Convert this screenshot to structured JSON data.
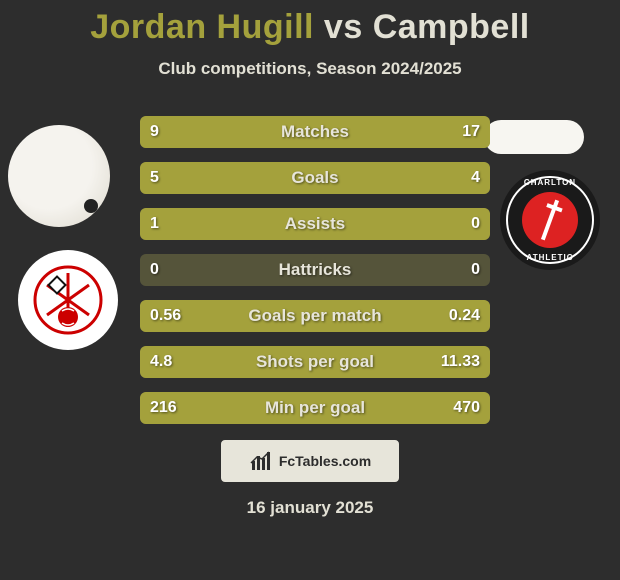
{
  "colors": {
    "bg": "#2d2d2d",
    "title_p1": "#a4a13c",
    "title_p2": "#e2e0d4",
    "subtitle": "#e2e0d4",
    "row_bg": "#55543a",
    "fill": "#a4a13c",
    "row_label": "#e7e5da",
    "row_value": "#ffffff",
    "logo_border": "#e7e5da",
    "logo_text": "#2d2d2d",
    "logo_bg": "#e7e5da",
    "date": "#e2e0d4"
  },
  "title": {
    "p1": "Jordan Hugill",
    "vs": "vs",
    "p2": "Campbell"
  },
  "subtitle": "Club competitions, Season 2024/2025",
  "badges": {
    "b2_top": "CHARLTON",
    "b2_bottom": "ATHLETIC"
  },
  "rows": [
    {
      "label": "Matches",
      "left": "9",
      "right": "17",
      "left_pct": 35,
      "right_pct": 65
    },
    {
      "label": "Goals",
      "left": "5",
      "right": "4",
      "left_pct": 56,
      "right_pct": 44
    },
    {
      "label": "Assists",
      "left": "1",
      "right": "0",
      "left_pct": 100,
      "right_pct": 0
    },
    {
      "label": "Hattricks",
      "left": "0",
      "right": "0",
      "left_pct": 0,
      "right_pct": 0
    },
    {
      "label": "Goals per match",
      "left": "0.56",
      "right": "0.24",
      "left_pct": 70,
      "right_pct": 30
    },
    {
      "label": "Shots per goal",
      "left": "4.8",
      "right": "11.33",
      "left_pct": 30,
      "right_pct": 70
    },
    {
      "label": "Min per goal",
      "left": "216",
      "right": "470",
      "left_pct": 31,
      "right_pct": 69
    }
  ],
  "logo_text": "FcTables.com",
  "date": "16 january 2025"
}
